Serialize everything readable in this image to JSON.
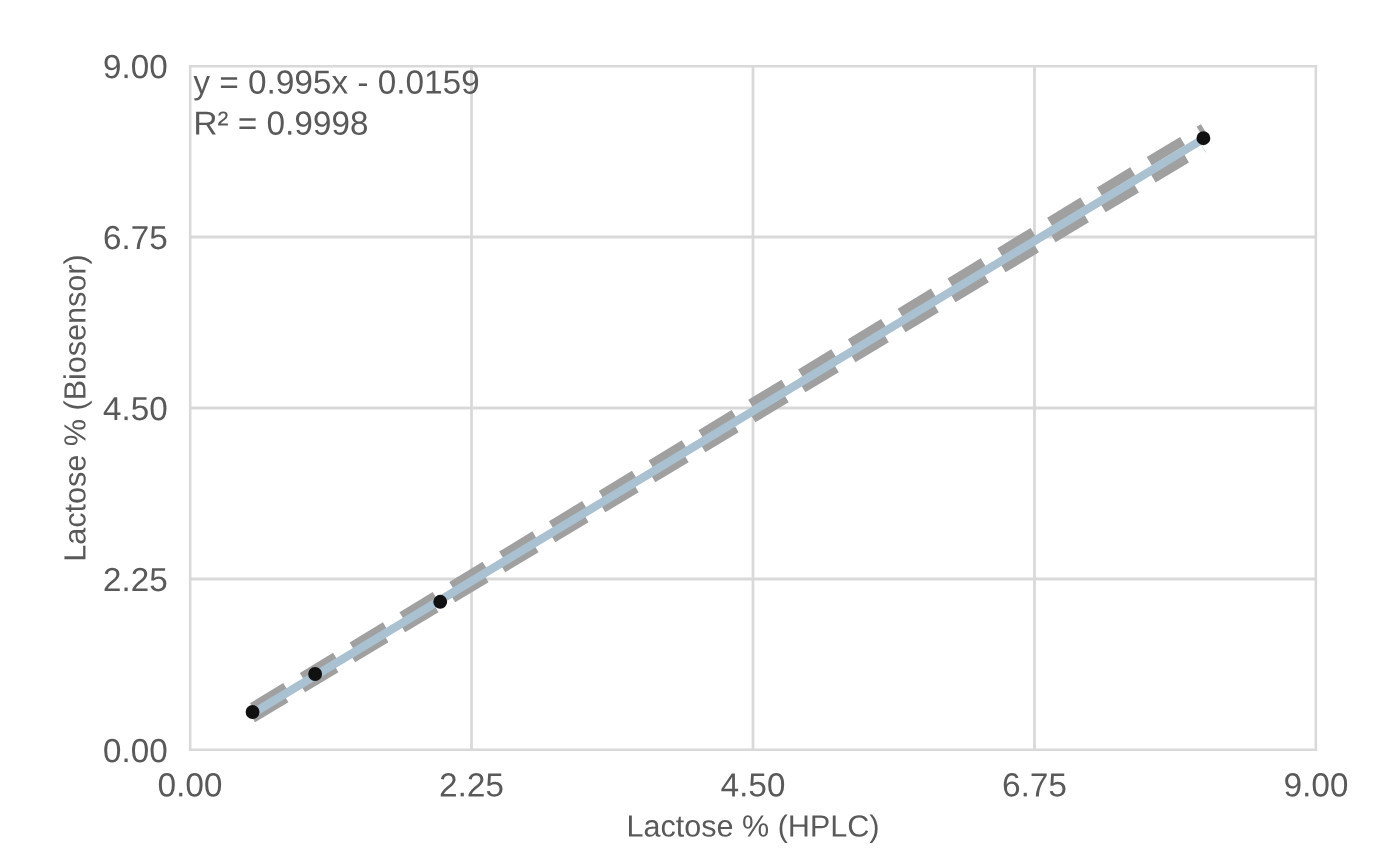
{
  "chart_data": {
    "type": "scatter",
    "xlabel": "Lactose % (HPLC)",
    "ylabel": "Lactose % (Biosensor)",
    "xlim": [
      0,
      9
    ],
    "ylim": [
      0,
      9
    ],
    "xticks": [
      {
        "value": 0,
        "label": "0.00"
      },
      {
        "value": 2.25,
        "label": "2.25"
      },
      {
        "value": 4.5,
        "label": "4.50"
      },
      {
        "value": 6.75,
        "label": "6.75"
      },
      {
        "value": 9,
        "label": "9.00"
      }
    ],
    "yticks": [
      {
        "value": 0,
        "label": "0.00"
      },
      {
        "value": 2.25,
        "label": "2.25"
      },
      {
        "value": 4.5,
        "label": "4.50"
      },
      {
        "value": 6.75,
        "label": "6.75"
      },
      {
        "value": 9,
        "label": "9.00"
      }
    ],
    "grid": true,
    "legend": false,
    "annotations": [
      "y = 0.995x - 0.0159",
      "R² = 0.9998"
    ],
    "series": [
      {
        "type": "line",
        "x": [
          0.5,
          8.1
        ],
        "values": [
          0.56,
          8.18
        ],
        "color": "#a0a0a0",
        "line_style": "dashed"
      },
      {
        "type": "line",
        "x": [
          0.5,
          8.1
        ],
        "values": [
          0.42,
          7.92
        ],
        "color": "#a0a0a0",
        "line_style": "dashed"
      },
      {
        "type": "line",
        "x": [
          0.5,
          8.1
        ],
        "values": [
          0.48,
          8.04
        ],
        "color": "#a9c1d1",
        "line_style": "solid"
      },
      {
        "x": [
          0.5,
          1.0,
          2.0,
          8.1
        ],
        "values": [
          0.5,
          1.0,
          1.95,
          8.05
        ],
        "color": "#111111",
        "marker": "circle"
      }
    ]
  }
}
